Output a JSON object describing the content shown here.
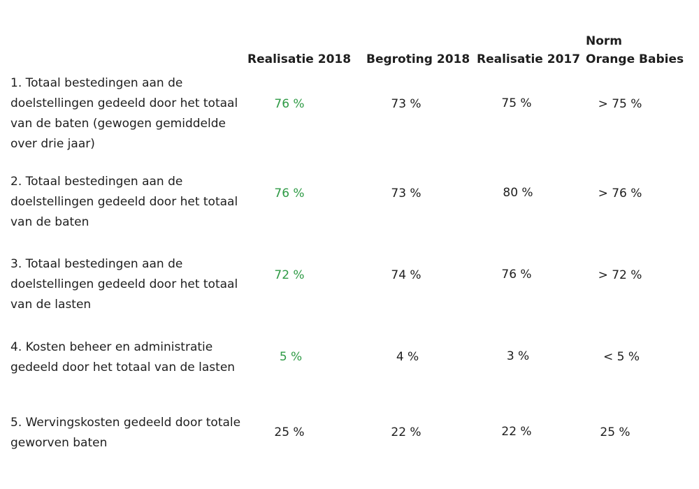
{
  "columns": {
    "realisatie_2018": "Realisatie 2018",
    "begroting_2018": "Begroting 2018",
    "realisatie_2017": "Realisatie 2017",
    "norm_line1": "Norm",
    "norm_line2": "Orange Babies"
  },
  "rows": [
    {
      "label": "1. Totaal bestedingen aan de doelstellingen gedeeld door het totaal van de baten (gewogen gemiddelde over drie jaar)",
      "realisatie_2018": "76 %",
      "begroting_2018": "73 %",
      "realisatie_2017": "75 %",
      "norm": "> 75 %"
    },
    {
      "label": "2. Totaal bestedingen aan de doelstellingen gedeeld door het totaal van de baten",
      "realisatie_2018": "76 %",
      "begroting_2018": "73 %",
      "realisatie_2017": "80 %",
      "norm": "> 76 %"
    },
    {
      "label": "3. Totaal bestedingen aan de doelstellingen gedeeld door het totaal van de lasten",
      "realisatie_2018": "72 %",
      "begroting_2018": "74 %",
      "realisatie_2017": "76 %",
      "norm": "> 72 %"
    },
    {
      "label": "4. Kosten beheer en administratie gedeeld door het totaal van de lasten",
      "realisatie_2018": "5 %",
      "begroting_2018": "4 %",
      "realisatie_2017": "3 %",
      "norm": "< 5 %"
    },
    {
      "label": "5. Wervingskosten gedeeld door totale geworven baten",
      "realisatie_2018": "25 %",
      "begroting_2018": "22 %",
      "realisatie_2017": "22 %",
      "norm": "25 %"
    }
  ],
  "colors": {
    "highlight": "#2e9a45",
    "text": "#1e1e1e"
  }
}
